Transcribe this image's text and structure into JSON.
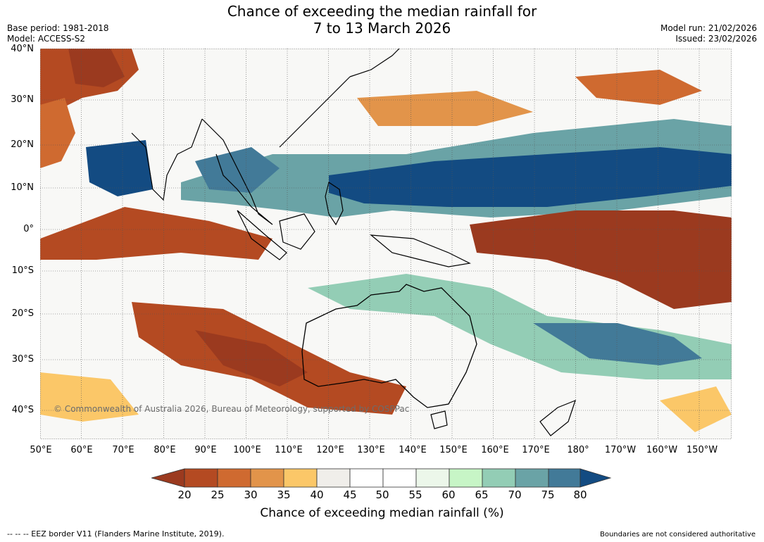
{
  "title": {
    "line1": "Chance of exceeding the median rainfall for",
    "line2": "7 to 13 March 2026"
  },
  "meta": {
    "base_period": "Base period: 1981-2018",
    "model": "Model: ACCESS-S2",
    "model_run": "Model run: 21/02/2026",
    "issued": "Issued: 23/02/2026"
  },
  "map": {
    "lat_labels": [
      "40°N",
      "30°N",
      "20°N",
      "10°N",
      "0°",
      "10°S",
      "20°S",
      "30°S",
      "40°S"
    ],
    "lon_labels": [
      "50°E",
      "60°E",
      "70°E",
      "80°E",
      "90°E",
      "100°E",
      "110°E",
      "120°E",
      "130°E",
      "140°E",
      "150°E",
      "160°E",
      "170°E",
      "180°",
      "170°W",
      "160°W",
      "150°W"
    ],
    "copyright": "© Commonwealth of Australia 2026, Bureau of Meteorology, supported by COSPPac"
  },
  "legend": {
    "ticks": [
      "20",
      "25",
      "30",
      "35",
      "40",
      "45",
      "50",
      "55",
      "60",
      "65",
      "70",
      "75",
      "80"
    ],
    "label": "Chance of exceeding median rainfall (%)",
    "colors": [
      "#9b3a1f",
      "#b44a22",
      "#cf6a30",
      "#e2944a",
      "#fbc768",
      "#f0eeea",
      "#ffffff",
      "#ffffff",
      "#ecf7ea",
      "#c7f5c6",
      "#93cdb5",
      "#6aa3a6",
      "#427a98",
      "#134b82"
    ]
  },
  "footer": {
    "eez": "--  --  -- EEZ border V11 (Flanders Marine Institute, 2019).",
    "disclaimer": "Boundaries are not considered authoritative"
  }
}
